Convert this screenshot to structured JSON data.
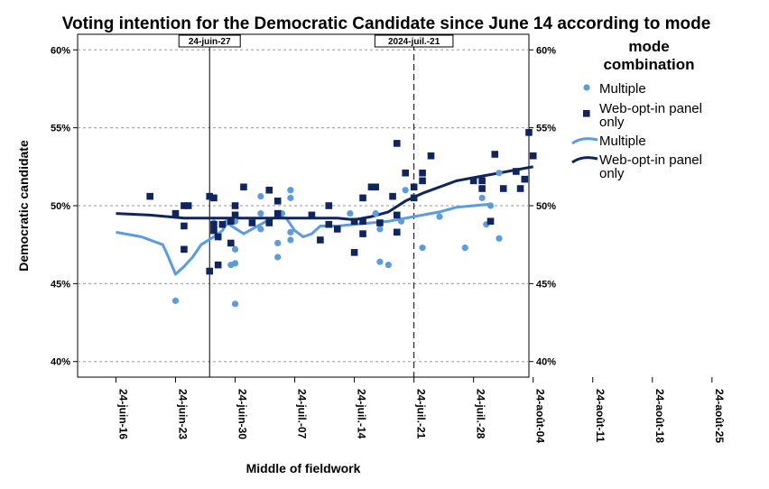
{
  "chart_data": {
    "type": "scatter",
    "title": "Voting intention for the Democratic Candidate since June 14 according to mode",
    "xlabel": "Middle of fieldwork",
    "ylabel": "Democratic candidate",
    "x_ticks": [
      "24-juin-16",
      "24-juin-23",
      "24-juin-30",
      "24-juil.-07",
      "24-juil.-14",
      "24-juil.-21",
      "24-juil.-28",
      "24-août-04",
      "24-août-11",
      "24-août-18",
      "24-août-25"
    ],
    "y_ticks": [
      "40%",
      "45%",
      "50%",
      "55%",
      "60%"
    ],
    "ylim": [
      39,
      61
    ],
    "xlim_days": [
      -4.5,
      48.5
    ],
    "grid": "horizontal dashed",
    "reference_lines": [
      {
        "label": "24-juin-27",
        "day": 11,
        "style": "solid"
      },
      {
        "label": "2024-juil.-21",
        "day": 35,
        "style": "dashed"
      }
    ],
    "legend": {
      "title": "mode combination",
      "position": "right",
      "entries": [
        {
          "label": "Multiple",
          "marker": "circle"
        },
        {
          "label": "Web-opt-in panel only",
          "marker": "square"
        },
        {
          "label": "Multiple",
          "marker": "line-light"
        },
        {
          "label": "Web-opt-in panel only",
          "marker": "line-dark"
        }
      ]
    },
    "colors": {
      "multiple": "#5b9be0",
      "web": "#10245e"
    },
    "series": [
      {
        "name": "Multiple",
        "kind": "points",
        "points": [
          [
            7,
            43.9
          ],
          [
            11.5,
            48.9
          ],
          [
            12,
            46.2
          ],
          [
            13,
            48.9
          ],
          [
            13.5,
            46.2
          ],
          [
            14,
            49.0
          ],
          [
            14,
            47.2
          ],
          [
            14,
            46.3
          ],
          [
            14,
            43.7
          ],
          [
            17,
            50.6
          ],
          [
            17,
            49.5
          ],
          [
            17,
            48.5
          ],
          [
            19,
            46.7
          ],
          [
            19,
            47.6
          ],
          [
            19.5,
            49.5
          ],
          [
            20.5,
            51.0
          ],
          [
            20.5,
            50.5
          ],
          [
            20.5,
            48.3
          ],
          [
            20.5,
            47.8
          ],
          [
            27.5,
            49.5
          ],
          [
            30.5,
            49.5
          ],
          [
            31,
            48.5
          ],
          [
            31,
            46.4
          ],
          [
            32,
            46.2
          ],
          [
            33.5,
            49.0
          ],
          [
            34,
            51.0
          ],
          [
            36,
            47.3
          ],
          [
            38,
            49.3
          ],
          [
            41,
            47.3
          ],
          [
            43,
            50.5
          ],
          [
            43.5,
            48.8
          ],
          [
            44,
            50.0
          ],
          [
            45,
            52.1
          ],
          [
            45,
            47.9
          ]
        ]
      },
      {
        "name": "Web-opt-in panel only",
        "kind": "points",
        "points": [
          [
            4,
            50.6
          ],
          [
            7,
            49.5
          ],
          [
            8,
            50.0
          ],
          [
            8,
            48.7
          ],
          [
            8,
            47.2
          ],
          [
            8.5,
            50.0
          ],
          [
            11,
            45.8
          ],
          [
            11,
            50.6
          ],
          [
            11.5,
            50.5
          ],
          [
            11.5,
            48.8
          ],
          [
            11.5,
            48.4
          ],
          [
            12,
            48.0
          ],
          [
            12,
            46.2
          ],
          [
            12.5,
            48.8
          ],
          [
            13.5,
            49.0
          ],
          [
            13.5,
            47.6
          ],
          [
            14,
            50.0
          ],
          [
            14,
            49.4
          ],
          [
            15,
            51.2
          ],
          [
            16,
            48.9
          ],
          [
            18,
            48.9
          ],
          [
            18,
            51.0
          ],
          [
            19,
            50.3
          ],
          [
            19,
            49.5
          ],
          [
            23,
            49.4
          ],
          [
            24,
            47.8
          ],
          [
            25,
            50.0
          ],
          [
            25,
            48.8
          ],
          [
            26,
            48.5
          ],
          [
            28,
            47.0
          ],
          [
            28,
            49.0
          ],
          [
            29,
            48.2
          ],
          [
            29,
            49.0
          ],
          [
            29,
            50.5
          ],
          [
            30,
            51.2
          ],
          [
            30.5,
            51.2
          ],
          [
            31,
            48.9
          ],
          [
            32.5,
            50.6
          ],
          [
            33,
            49.4
          ],
          [
            33,
            48.3
          ],
          [
            33,
            54.0
          ],
          [
            34,
            52.1
          ],
          [
            35,
            51.2
          ],
          [
            35,
            50.5
          ],
          [
            36,
            51.6
          ],
          [
            36,
            52.1
          ],
          [
            37,
            53.2
          ],
          [
            42,
            51.6
          ],
          [
            43,
            51.6
          ],
          [
            43,
            51.1
          ],
          [
            44,
            49.0
          ],
          [
            44.5,
            53.3
          ],
          [
            45.5,
            51.1
          ],
          [
            47,
            52.2
          ],
          [
            47.5,
            51.1
          ],
          [
            48,
            51.7
          ],
          [
            48.5,
            54.7
          ],
          [
            49,
            53.2
          ]
        ]
      },
      {
        "name": "Multiple",
        "kind": "fit-line",
        "points": [
          [
            0,
            48.3
          ],
          [
            3,
            48.0
          ],
          [
            5.5,
            47.5
          ],
          [
            6,
            46.9
          ],
          [
            7,
            45.6
          ],
          [
            8,
            46.1
          ],
          [
            9,
            46.7
          ],
          [
            10,
            47.5
          ],
          [
            11.5,
            48.0
          ],
          [
            12.5,
            48.4
          ],
          [
            13,
            48.9
          ],
          [
            15,
            48.2
          ],
          [
            16,
            48.5
          ],
          [
            17,
            48.8
          ],
          [
            18,
            49.1
          ],
          [
            19,
            49.3
          ],
          [
            20,
            49.2
          ],
          [
            21,
            48.4
          ],
          [
            22,
            48.0
          ],
          [
            23,
            48.2
          ],
          [
            24,
            48.7
          ],
          [
            26,
            48.7
          ],
          [
            28,
            48.8
          ],
          [
            30,
            48.9
          ],
          [
            32,
            49.0
          ],
          [
            34,
            49.2
          ],
          [
            36,
            49.4
          ],
          [
            38,
            49.6
          ],
          [
            40,
            49.9
          ],
          [
            42,
            50.0
          ],
          [
            44,
            50.1
          ]
        ]
      },
      {
        "name": "Web-opt-in panel only",
        "kind": "fit-line",
        "points": [
          [
            0,
            49.5
          ],
          [
            4,
            49.4
          ],
          [
            8,
            49.2
          ],
          [
            12,
            49.2
          ],
          [
            16,
            49.2
          ],
          [
            20,
            49.2
          ],
          [
            24,
            49.2
          ],
          [
            26,
            49.2
          ],
          [
            28,
            49.1
          ],
          [
            30,
            49.3
          ],
          [
            32,
            49.6
          ],
          [
            34,
            50.3
          ],
          [
            36,
            50.8
          ],
          [
            38,
            51.2
          ],
          [
            40,
            51.6
          ],
          [
            42,
            51.8
          ],
          [
            44,
            52.0
          ],
          [
            46,
            52.2
          ],
          [
            48,
            52.4
          ],
          [
            49,
            52.5
          ]
        ]
      }
    ]
  }
}
